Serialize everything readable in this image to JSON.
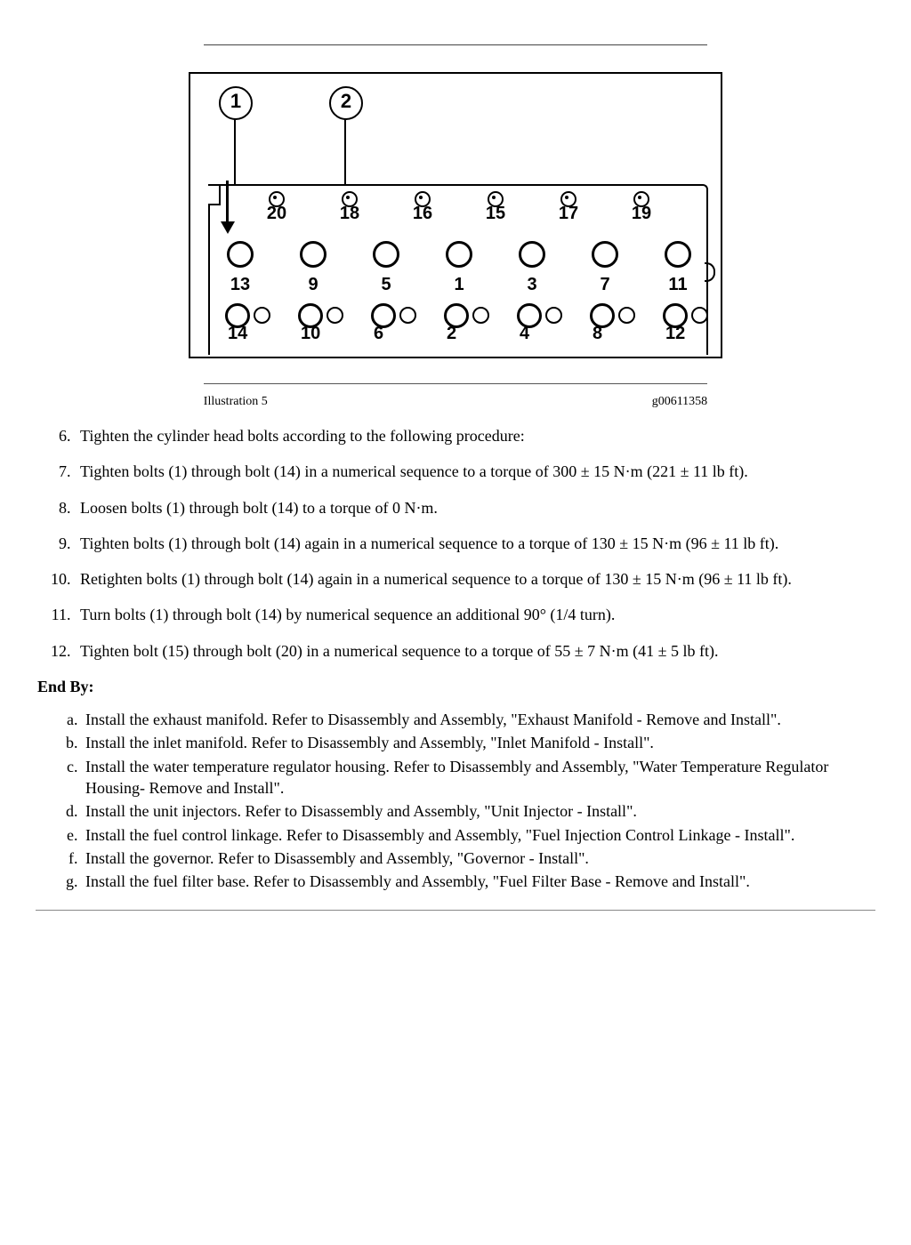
{
  "figure": {
    "callouts": [
      "1",
      "2"
    ],
    "top_row": [
      "20",
      "18",
      "16",
      "15",
      "17",
      "19"
    ],
    "mid_row": [
      "13",
      "9",
      "5",
      "1",
      "3",
      "7",
      "11"
    ],
    "bot_row": [
      "14",
      "10",
      "6",
      "2",
      "4",
      "8",
      "12"
    ],
    "col_x_7": [
      14,
      96,
      178,
      260,
      342,
      424,
      506
    ],
    "col_x_6": [
      55,
      137,
      219,
      301,
      383,
      465
    ]
  },
  "caption": {
    "left": "Illustration 5",
    "right": "g00611358"
  },
  "steps": [
    "Tighten the cylinder head bolts according to the following procedure:",
    "Tighten bolts (1) through bolt (14) in a numerical sequence to a torque of 300 ± 15 N·m (221 ± 11 lb ft).",
    "Loosen bolts (1) through bolt (14) to a torque of 0 N·m.",
    "Tighten bolts (1) through bolt (14) again in a numerical sequence to a torque of 130 ± 15 N·m (96 ± 11 lb ft).",
    "Retighten bolts (1) through bolt (14) again in a numerical sequence to a torque of 130 ± 15 N·m (96 ± 11 lb ft).",
    "Turn bolts (1) through bolt (14) by numerical sequence an additional 90° (1/4 turn).",
    "Tighten bolt (15) through bolt (20) in a numerical sequence to a torque of 55 ± 7 N·m (41 ± 5 lb ft)."
  ],
  "steps_start": 6,
  "endby_label": "End By:",
  "endby": [
    "Install the exhaust manifold. Refer to Disassembly and Assembly, \"Exhaust Manifold - Remove and Install\".",
    "Install the inlet manifold. Refer to Disassembly and Assembly, \"Inlet Manifold - Install\".",
    "Install the water temperature regulator housing. Refer to Disassembly and Assembly, \"Water Temperature Regulator Housing- Remove and Install\".",
    "Install the unit injectors. Refer to Disassembly and Assembly, \"Unit Injector - Install\".",
    "Install the fuel control linkage. Refer to Disassembly and Assembly, \"Fuel Injection Control Linkage - Install\".",
    "Install the governor. Refer to Disassembly and Assembly, \"Governor - Install\".",
    "Install the fuel filter base. Refer to Disassembly and Assembly, \"Fuel Filter Base - Remove and Install\"."
  ]
}
